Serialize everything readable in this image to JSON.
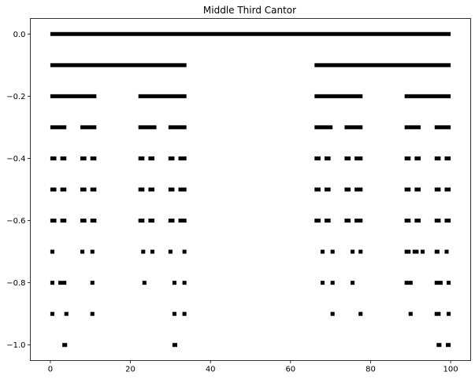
{
  "chart_data": {
    "type": "line",
    "title": "Middle Third Cantor",
    "xlabel": "",
    "ylabel": "",
    "xlim": [
      -5,
      105
    ],
    "ylim": [
      -1.05,
      0.05
    ],
    "grid": false,
    "line_color": "#000000",
    "x_ticks": [
      {
        "value": 0,
        "label": "0"
      },
      {
        "value": 20,
        "label": "20"
      },
      {
        "value": 40,
        "label": "40"
      },
      {
        "value": 60,
        "label": "60"
      },
      {
        "value": 80,
        "label": "80"
      },
      {
        "value": 100,
        "label": "100"
      }
    ],
    "y_ticks": [
      {
        "value": 0.0,
        "label": "0.0"
      },
      {
        "value": -0.2,
        "label": "−0.2"
      },
      {
        "value": -0.4,
        "label": "−0.4"
      },
      {
        "value": -0.6,
        "label": "−0.6"
      },
      {
        "value": -0.8,
        "label": "−0.8"
      },
      {
        "value": -1.0,
        "label": "−1.0"
      }
    ],
    "levels": [
      {
        "y": 0.0,
        "segments": [
          [
            0,
            100
          ]
        ]
      },
      {
        "y": -0.1,
        "segments": [
          [
            0,
            34
          ],
          [
            66,
            100
          ]
        ]
      },
      {
        "y": -0.2,
        "segments": [
          [
            0,
            11.5
          ],
          [
            22,
            34
          ],
          [
            66,
            78
          ],
          [
            88.5,
            100
          ]
        ]
      },
      {
        "y": -0.3,
        "segments": [
          [
            0,
            4
          ],
          [
            7.5,
            11.5
          ],
          [
            22,
            26.5
          ],
          [
            29.5,
            34
          ],
          [
            66,
            70.5
          ],
          [
            73.5,
            78
          ],
          [
            88.5,
            92.5
          ],
          [
            96,
            100
          ]
        ]
      },
      {
        "y": -0.4,
        "segments": [
          [
            0,
            1.5
          ],
          [
            2.5,
            4
          ],
          [
            7.5,
            9
          ],
          [
            10,
            11.5
          ],
          [
            22,
            23.5
          ],
          [
            24.5,
            26
          ],
          [
            29.5,
            31
          ],
          [
            32,
            34
          ],
          [
            66,
            67.5
          ],
          [
            68.5,
            70
          ],
          [
            73.5,
            75
          ],
          [
            76,
            78
          ],
          [
            88.5,
            90
          ],
          [
            91,
            92.5
          ],
          [
            96,
            97.5
          ],
          [
            98.5,
            100
          ]
        ]
      },
      {
        "y": -0.5,
        "segments": [
          [
            0,
            1.5
          ],
          [
            2.5,
            4
          ],
          [
            7.5,
            9
          ],
          [
            10,
            11.5
          ],
          [
            22,
            23.5
          ],
          [
            24.5,
            26
          ],
          [
            29.5,
            31
          ],
          [
            32,
            34
          ],
          [
            66,
            67.5
          ],
          [
            68.5,
            70
          ],
          [
            73.5,
            75
          ],
          [
            76,
            78
          ],
          [
            88.5,
            90
          ],
          [
            91,
            92.5
          ],
          [
            96,
            97.5
          ],
          [
            98.5,
            100
          ]
        ]
      },
      {
        "y": -0.6,
        "segments": [
          [
            0,
            1.5
          ],
          [
            2.5,
            4
          ],
          [
            7.5,
            9
          ],
          [
            10,
            11.5
          ],
          [
            22,
            23.5
          ],
          [
            24.5,
            26
          ],
          [
            29.5,
            31
          ],
          [
            32,
            34
          ],
          [
            66,
            67.5
          ],
          [
            68.5,
            70
          ],
          [
            73.5,
            75
          ],
          [
            76,
            78
          ],
          [
            88.5,
            90
          ],
          [
            91,
            92.5
          ],
          [
            96,
            97.5
          ],
          [
            98.5,
            100
          ]
        ]
      },
      {
        "y": -0.7,
        "segments": [
          [
            0,
            1
          ],
          [
            7.5,
            8.5
          ],
          [
            10,
            11
          ],
          [
            22.7,
            23.7
          ],
          [
            25,
            26
          ],
          [
            29.5,
            30.5
          ],
          [
            33,
            34
          ],
          [
            67.5,
            68.5
          ],
          [
            70,
            71
          ],
          [
            75,
            76
          ],
          [
            77,
            78
          ],
          [
            88.5,
            90
          ],
          [
            90.5,
            92
          ],
          [
            92.5,
            93.5
          ],
          [
            96,
            97.2
          ],
          [
            98.5,
            99.5
          ]
        ]
      },
      {
        "y": -0.8,
        "segments": [
          [
            0,
            1
          ],
          [
            2,
            4
          ],
          [
            10,
            11
          ],
          [
            23,
            24
          ],
          [
            30.5,
            31.5
          ],
          [
            33,
            34
          ],
          [
            67.5,
            68.5
          ],
          [
            70,
            71
          ],
          [
            75,
            76
          ],
          [
            88.5,
            90.5
          ],
          [
            96,
            98
          ],
          [
            99,
            100
          ]
        ]
      },
      {
        "y": -0.9,
        "segments": [
          [
            0,
            1
          ],
          [
            3.5,
            4.5
          ],
          [
            10,
            11
          ],
          [
            30.5,
            31.5
          ],
          [
            33,
            34
          ],
          [
            70,
            71
          ],
          [
            77,
            78
          ],
          [
            89.5,
            90.5
          ],
          [
            96,
            97.5
          ],
          [
            99,
            100
          ]
        ]
      },
      {
        "y": -1.0,
        "segments": [
          [
            3,
            4.2
          ],
          [
            30.5,
            31.7
          ],
          [
            96.5,
            97.7
          ],
          [
            98.8,
            100
          ]
        ]
      }
    ]
  }
}
